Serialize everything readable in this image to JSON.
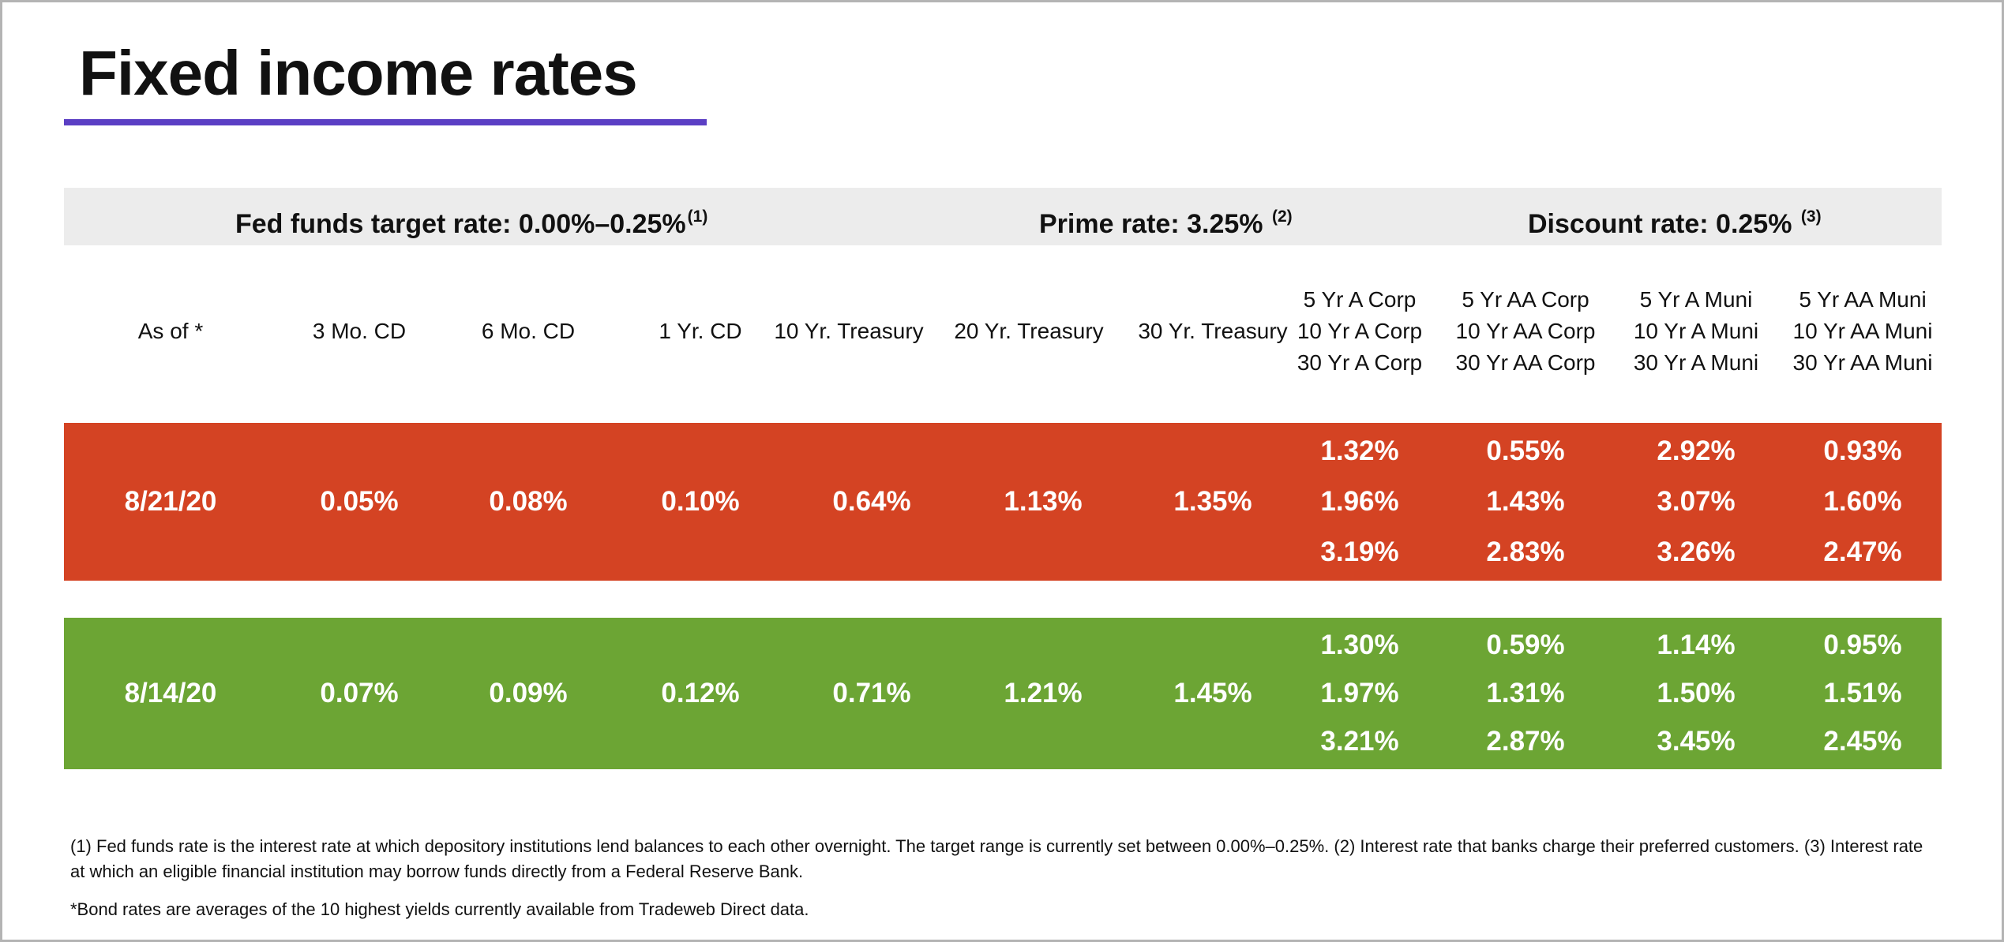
{
  "title": "Fixed income rates",
  "colors": {
    "accent_underline": "#5b3fc4",
    "row_current": "#d44323",
    "row_previous": "#6ca534",
    "rates_bar_bg": "#ececec"
  },
  "rates": {
    "fed": {
      "label": "Fed funds target rate: 0.00%–0.25%",
      "note": "(1)"
    },
    "prime": {
      "label": "Prime rate: 3.25%",
      "note": "(2)"
    },
    "discount": {
      "label": "Discount rate: 0.25%",
      "note": "(3)"
    }
  },
  "headers": [
    [
      "As of *"
    ],
    [
      "3 Mo. CD"
    ],
    [
      "6 Mo. CD"
    ],
    [
      "1 Yr. CD"
    ],
    [
      "10 Yr. Treasury"
    ],
    [
      "20 Yr. Treasury"
    ],
    [
      "30 Yr. Treasury"
    ],
    [
      "5 Yr A Corp",
      "10 Yr A Corp",
      "30 Yr A Corp"
    ],
    [
      "5 Yr AA Corp",
      "10 Yr AA Corp",
      "30 Yr AA Corp"
    ],
    [
      "5 Yr A Muni",
      "10 Yr A Muni",
      "30 Yr A Muni"
    ],
    [
      "5 Yr AA Muni",
      "10 Yr AA Muni",
      "30 Yr AA Muni"
    ]
  ],
  "rows": [
    {
      "date": "8/21/20",
      "cd_3mo": "0.05%",
      "cd_6mo": "0.08%",
      "cd_1yr": "0.10%",
      "treasury_10yr": "0.64%",
      "treasury_20yr": "1.13%",
      "treasury_30yr": "1.35%",
      "a_corp": [
        "1.32%",
        "1.96%",
        "3.19%"
      ],
      "aa_corp": [
        "0.55%",
        "1.43%",
        "2.83%"
      ],
      "a_muni": [
        "2.92%",
        "3.07%",
        "3.26%"
      ],
      "aa_muni": [
        "0.93%",
        "1.60%",
        "2.47%"
      ]
    },
    {
      "date": "8/14/20",
      "cd_3mo": "0.07%",
      "cd_6mo": "0.09%",
      "cd_1yr": "0.12%",
      "treasury_10yr": "0.71%",
      "treasury_20yr": "1.21%",
      "treasury_30yr": "1.45%",
      "a_corp": [
        "1.30%",
        "1.97%",
        "3.21%"
      ],
      "aa_corp": [
        "0.59%",
        "1.31%",
        "2.87%"
      ],
      "a_muni": [
        "1.14%",
        "1.50%",
        "3.45%"
      ],
      "aa_muni": [
        "0.95%",
        "1.51%",
        "2.45%"
      ]
    }
  ],
  "footnotes": [
    "(1) Fed funds rate is the interest rate at which depository institutions lend balances to each other overnight. The target range is currently set between 0.00%–0.25%. (2) Interest rate that banks charge their preferred customers. (3) Interest rate at which an eligible financial institution may borrow funds directly from a Federal Reserve Bank.",
    "*Bond rates are averages of the 10 highest yields currently available from Tradeweb Direct data."
  ]
}
